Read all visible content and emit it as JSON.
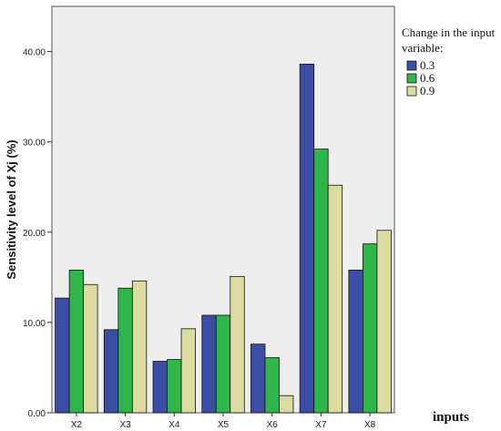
{
  "chart_data": {
    "type": "bar",
    "title": "",
    "xlabel": "inputs",
    "ylabel": "Sensitivity level of Xj (%)",
    "ylim": [
      0,
      45
    ],
    "yticks": [
      "0.00",
      "10.00",
      "20.00",
      "30.00",
      "40.00"
    ],
    "ytick_values": [
      0,
      10,
      20,
      30,
      40
    ],
    "categories": [
      "X2",
      "X3",
      "X4",
      "X5",
      "X6",
      "X7",
      "X8"
    ],
    "legend": {
      "title": "Change in the input variable:",
      "placement": "right"
    },
    "grid": false,
    "series": [
      {
        "name": "0.3",
        "color": "#3a4fa3",
        "values": [
          12.7,
          9.2,
          5.7,
          10.8,
          7.6,
          38.6,
          15.8
        ]
      },
      {
        "name": "0.6",
        "color": "#2fb64a",
        "values": [
          15.8,
          13.8,
          5.9,
          10.8,
          6.1,
          29.2,
          18.7
        ]
      },
      {
        "name": "0.9",
        "color": "#dcdba0",
        "values": [
          14.2,
          14.6,
          9.3,
          15.1,
          1.9,
          25.2,
          20.2
        ]
      }
    ]
  }
}
